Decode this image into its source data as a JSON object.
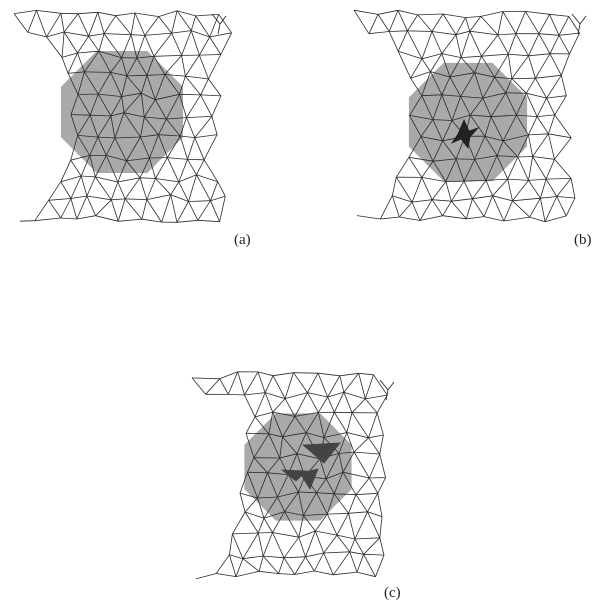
{
  "figure": {
    "panels": [
      {
        "id": "a",
        "label": "(a)",
        "highlight": "octagon",
        "mesh_color": "#2b2b2b",
        "region_color": "#9a9a9a"
      },
      {
        "id": "b",
        "label": "(b)",
        "highlight": "octagon-with-star-defect",
        "mesh_color": "#2b2b2b",
        "region_color": "#9a9a9a",
        "defect_color": "#222222"
      },
      {
        "id": "c",
        "label": "(c)",
        "highlight": "octagon-with-dark-triangles",
        "mesh_color": "#2b2b2b",
        "region_color": "#9a9a9a",
        "defect_color": "#444444"
      }
    ]
  }
}
